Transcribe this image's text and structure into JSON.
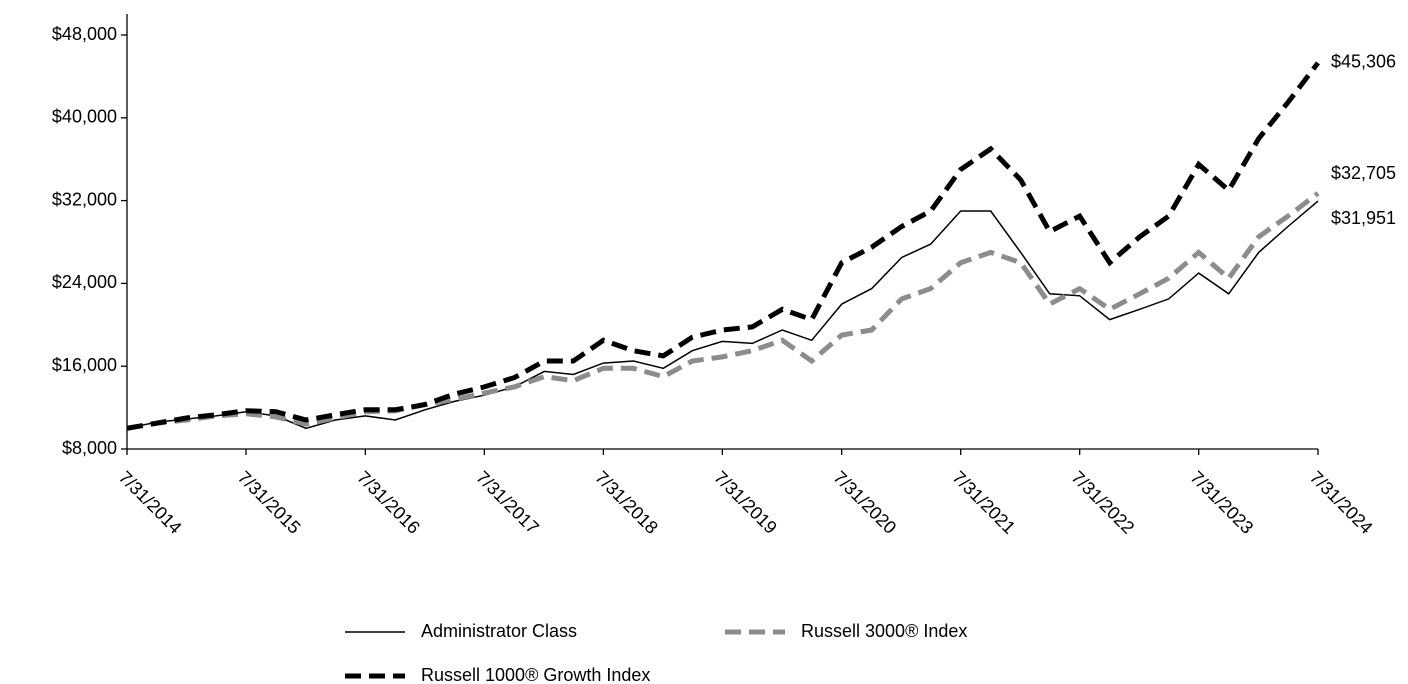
{
  "chart_data": {
    "type": "line",
    "x": [
      "7/31/2014",
      "10/31/2014",
      "1/31/2015",
      "4/30/2015",
      "7/31/2015",
      "10/31/2015",
      "1/31/2016",
      "4/30/2016",
      "7/31/2016",
      "10/31/2016",
      "1/31/2017",
      "4/30/2017",
      "7/31/2017",
      "10/31/2017",
      "1/31/2018",
      "4/30/2018",
      "7/31/2018",
      "10/31/2018",
      "1/31/2019",
      "4/30/2019",
      "7/31/2019",
      "10/31/2019",
      "1/31/2020",
      "4/30/2020",
      "7/31/2020",
      "10/31/2020",
      "1/31/2021",
      "4/30/2021",
      "7/31/2021",
      "10/31/2021",
      "1/31/2022",
      "4/30/2022",
      "7/31/2022",
      "10/31/2022",
      "1/31/2023",
      "4/30/2023",
      "7/31/2023",
      "10/31/2023",
      "1/31/2024",
      "4/30/2024",
      "7/31/2024"
    ],
    "series": [
      {
        "name": "Administrator Class",
        "color": "#000000",
        "style": "solid",
        "values": [
          10000,
          10600,
          10900,
          11200,
          11600,
          11200,
          10000,
          10800,
          11200,
          10800,
          11800,
          12600,
          13200,
          14000,
          15500,
          15200,
          16300,
          16500,
          15800,
          17500,
          18400,
          18200,
          19500,
          18500,
          22000,
          23500,
          26500,
          27800,
          31000,
          31000,
          27000,
          23000,
          22800,
          20500,
          21500,
          22500,
          25000,
          23000,
          27000,
          29500,
          31951
        ],
        "value_labels": [
          null,
          null,
          null,
          null,
          null,
          null,
          null,
          null,
          null,
          null,
          null,
          null,
          null,
          null,
          null,
          null,
          null,
          null,
          null,
          null,
          null,
          null,
          null,
          null,
          null,
          null,
          null,
          null,
          null,
          null,
          null,
          null,
          null,
          null,
          null,
          null,
          null,
          null,
          null,
          null,
          "$31,951"
        ]
      },
      {
        "name": "Russell 3000® Index",
        "color": "#8c8c8c",
        "style": "dashed",
        "values": [
          10000,
          10500,
          10800,
          11200,
          11400,
          11100,
          10400,
          11000,
          11600,
          11700,
          12300,
          12800,
          13400,
          14000,
          15000,
          14600,
          15800,
          15800,
          15000,
          16500,
          16900,
          17500,
          18500,
          16500,
          19000,
          19500,
          22500,
          23500,
          26000,
          27000,
          26000,
          22000,
          23500,
          21500,
          23000,
          24500,
          27000,
          24500,
          28500,
          30500,
          32705
        ],
        "value_labels": [
          null,
          null,
          null,
          null,
          null,
          null,
          null,
          null,
          null,
          null,
          null,
          null,
          null,
          null,
          null,
          null,
          null,
          null,
          null,
          null,
          null,
          null,
          null,
          null,
          null,
          null,
          null,
          null,
          null,
          null,
          null,
          null,
          null,
          null,
          null,
          null,
          null,
          null,
          null,
          null,
          "$32,705"
        ]
      },
      {
        "name": "Russell 1000® Growth Index",
        "color": "#000000",
        "style": "dashed",
        "values": [
          10000,
          10500,
          11000,
          11300,
          11700,
          11600,
          10800,
          11300,
          11800,
          11800,
          12300,
          13300,
          14000,
          14900,
          16500,
          16500,
          18500,
          17500,
          17000,
          18800,
          19500,
          19800,
          21500,
          20500,
          26000,
          27500,
          29500,
          31000,
          35000,
          37000,
          34000,
          29000,
          30500,
          26000,
          28500,
          30500,
          35500,
          33000,
          38000,
          41500,
          45306
        ],
        "value_labels": [
          null,
          null,
          null,
          null,
          null,
          null,
          null,
          null,
          null,
          null,
          null,
          null,
          null,
          null,
          null,
          null,
          null,
          null,
          null,
          null,
          null,
          null,
          null,
          null,
          null,
          null,
          null,
          null,
          null,
          null,
          null,
          null,
          null,
          null,
          null,
          null,
          null,
          null,
          null,
          null,
          "$45,306"
        ]
      }
    ],
    "xlim": [
      "7/31/2014",
      "7/31/2024"
    ],
    "xticks": [
      "7/31/2014",
      "7/31/2015",
      "7/31/2016",
      "7/31/2017",
      "7/31/2018",
      "7/31/2019",
      "7/31/2020",
      "7/31/2021",
      "7/31/2022",
      "7/31/2023",
      "7/31/2024"
    ],
    "ylim": [
      8000,
      48000
    ],
    "yticks": [
      {
        "value": 8000,
        "label": "$8,000"
      },
      {
        "value": 16000,
        "label": "$16,000"
      },
      {
        "value": 24000,
        "label": "$24,000"
      },
      {
        "value": 32000,
        "label": "$32,000"
      },
      {
        "value": 40000,
        "label": "$40,000"
      },
      {
        "value": 48000,
        "label": "$48,000"
      }
    ],
    "grid": false
  }
}
